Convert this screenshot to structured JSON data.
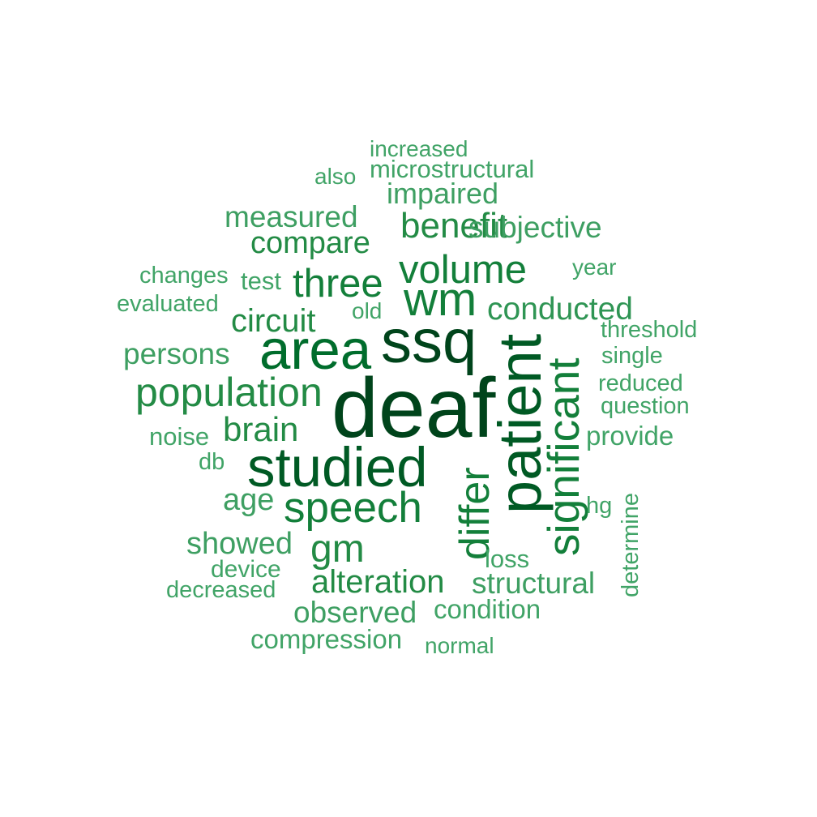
{
  "words": [
    {
      "text": "deaf",
      "weight": 10,
      "color": "#00441b"
    },
    {
      "text": "ssq",
      "weight": 9,
      "color": "#00441b"
    },
    {
      "text": "patient",
      "weight": 9,
      "color": "#005a24"
    },
    {
      "text": "studied",
      "weight": 8,
      "color": "#005a24"
    },
    {
      "text": "area",
      "weight": 8,
      "color": "#006d2c"
    },
    {
      "text": "significant",
      "weight": 7,
      "color": "#137f3a"
    },
    {
      "text": "wm",
      "weight": 7,
      "color": "#137f3a"
    },
    {
      "text": "three",
      "weight": 6,
      "color": "#137f3a"
    },
    {
      "text": "volume",
      "weight": 6,
      "color": "#137f3a"
    },
    {
      "text": "speech",
      "weight": 6,
      "color": "#137f3a"
    },
    {
      "text": "differ",
      "weight": 6,
      "color": "#137f3a"
    },
    {
      "text": "population",
      "weight": 5,
      "color": "#238b45"
    },
    {
      "text": "benefit",
      "weight": 5,
      "color": "#238b45"
    },
    {
      "text": "gm",
      "weight": 5,
      "color": "#238b45"
    },
    {
      "text": "compare",
      "weight": 4,
      "color": "#238b45"
    },
    {
      "text": "circuit",
      "weight": 4,
      "color": "#238b45"
    },
    {
      "text": "brain",
      "weight": 4,
      "color": "#238b45"
    },
    {
      "text": "alteration",
      "weight": 4,
      "color": "#238b45"
    },
    {
      "text": "conducted",
      "weight": 4,
      "color": "#2f9554"
    },
    {
      "text": "subjective",
      "weight": 3,
      "color": "#3e9f62"
    },
    {
      "text": "measured",
      "weight": 3,
      "color": "#3e9f62"
    },
    {
      "text": "impaired",
      "weight": 3,
      "color": "#3e9f62"
    },
    {
      "text": "persons",
      "weight": 3,
      "color": "#3e9f62"
    },
    {
      "text": "showed",
      "weight": 3,
      "color": "#3e9f62"
    },
    {
      "text": "observed",
      "weight": 3,
      "color": "#3e9f62"
    },
    {
      "text": "structural",
      "weight": 3,
      "color": "#3e9f62"
    },
    {
      "text": "age",
      "weight": 3,
      "color": "#3e9f62"
    },
    {
      "text": "microstructural",
      "weight": 2,
      "color": "#41a467"
    },
    {
      "text": "condition",
      "weight": 2,
      "color": "#41a467"
    },
    {
      "text": "compression",
      "weight": 2,
      "color": "#41a467"
    },
    {
      "text": "increased",
      "weight": 1,
      "color": "#41a467"
    },
    {
      "text": "also",
      "weight": 1,
      "color": "#41a467"
    },
    {
      "text": "changes",
      "weight": 1,
      "color": "#41a467"
    },
    {
      "text": "test",
      "weight": 1,
      "color": "#41a467"
    },
    {
      "text": "evaluated",
      "weight": 1,
      "color": "#41a467"
    },
    {
      "text": "old",
      "weight": 1,
      "color": "#41a467"
    },
    {
      "text": "year",
      "weight": 1,
      "color": "#41a467"
    },
    {
      "text": "threshold",
      "weight": 1,
      "color": "#41a467"
    },
    {
      "text": "single",
      "weight": 1,
      "color": "#41a467"
    },
    {
      "text": "reduced",
      "weight": 1,
      "color": "#41a467"
    },
    {
      "text": "question",
      "weight": 1,
      "color": "#41a467"
    },
    {
      "text": "provide",
      "weight": 1,
      "color": "#41a467"
    },
    {
      "text": "noise",
      "weight": 1,
      "color": "#41a467"
    },
    {
      "text": "db",
      "weight": 1,
      "color": "#41a467"
    },
    {
      "text": "hg",
      "weight": 1,
      "color": "#41a467"
    },
    {
      "text": "determine",
      "weight": 1,
      "color": "#41a467"
    },
    {
      "text": "device",
      "weight": 1,
      "color": "#41a467"
    },
    {
      "text": "decreased",
      "weight": 1,
      "color": "#41a467"
    },
    {
      "text": "loss",
      "weight": 1,
      "color": "#41a467"
    },
    {
      "text": "normal",
      "weight": 1,
      "color": "#41a467"
    }
  ]
}
